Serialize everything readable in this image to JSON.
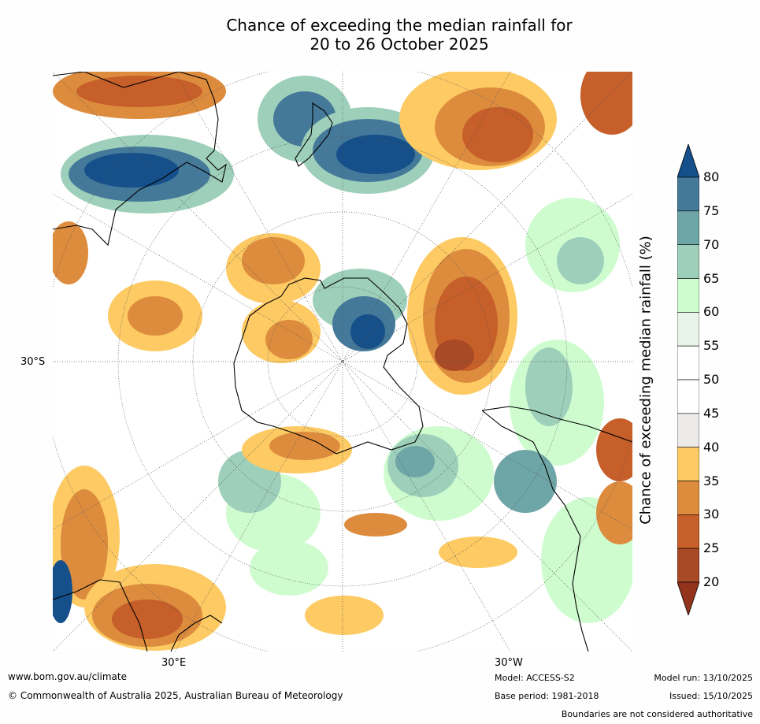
{
  "title": {
    "line1": "Chance of exceeding the median rainfall for",
    "line2": "20 to 26 October 2025"
  },
  "axes": {
    "lat_label": "30°S",
    "lon_label_left": "30°E",
    "lon_label_right": "30°W"
  },
  "colorbar": {
    "label": "Chance of exceeding median rainfall (%)",
    "ticks": [
      "80",
      "75",
      "70",
      "65",
      "60",
      "55",
      "50",
      "45",
      "40",
      "35",
      "30",
      "25",
      "20"
    ],
    "colors": [
      "#15508a",
      "#44799a",
      "#6ea5a6",
      "#9dcfba",
      "#cefccf",
      "#e9f4e9",
      "#ffffff",
      "#ffffff",
      "#ecebe7",
      "#fdca63",
      "#dd8c3e",
      "#c65f29",
      "#a84a26",
      "#93331c"
    ]
  },
  "footer": {
    "website": "www.bom.gov.au/climate",
    "copyright": "© Commonwealth of Australia 2025, Australian Bureau of Meteorology",
    "model": "Model: ACCESS-S2",
    "base_period": "Base period: 1981-2018",
    "model_run": "Model run: 13/10/2025",
    "issued": "Issued: 15/10/2025",
    "disclaimer": "Boundaries are not considered authoritative"
  }
}
